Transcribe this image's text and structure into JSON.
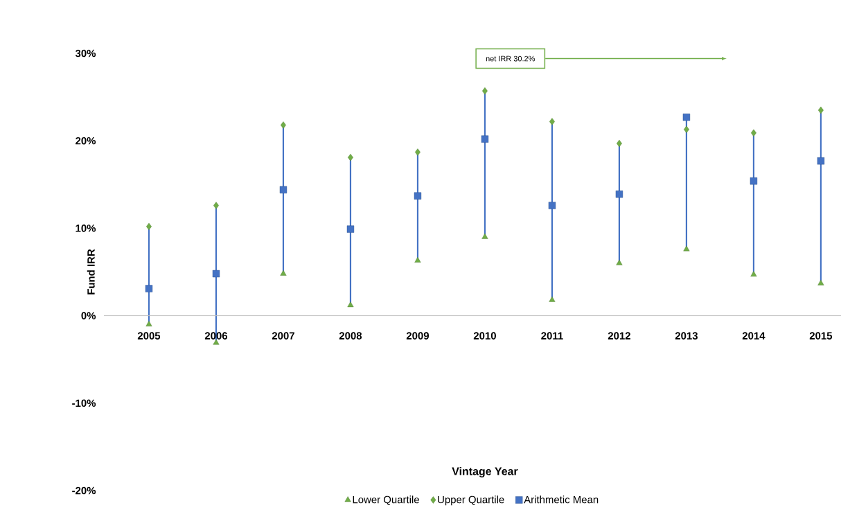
{
  "chart_data": {
    "type": "scatter",
    "ylabel": "Fund IRR",
    "xlabel": "Vintage Year",
    "categories": [
      "2005",
      "2006",
      "2007",
      "2008",
      "2009",
      "2010",
      "2011",
      "2012",
      "2013",
      "2014",
      "2015"
    ],
    "series": [
      {
        "name": "Lower Quartile",
        "color": "#70ad47",
        "marker": "triangle",
        "values": [
          -1.0,
          -3.1,
          4.8,
          1.2,
          6.3,
          9.0,
          1.8,
          6.0,
          7.6,
          4.7,
          3.7
        ]
      },
      {
        "name": "Upper Quartile",
        "color": "#70ad47",
        "marker": "diamond",
        "values": [
          10.2,
          12.6,
          21.8,
          18.1,
          18.7,
          25.7,
          22.2,
          19.7,
          21.3,
          20.9,
          23.5
        ]
      },
      {
        "name": "Arithmetic Mean",
        "color": "#4472c4",
        "marker": "square",
        "values": [
          3.1,
          4.8,
          14.4,
          9.9,
          13.7,
          20.2,
          12.6,
          13.9,
          22.7,
          15.4,
          17.7
        ]
      }
    ],
    "ylim": [
      -20,
      30
    ],
    "yticks": [
      {
        "value": -20,
        "label": "-20%"
      },
      {
        "value": -10,
        "label": "-10%"
      },
      {
        "value": 0,
        "label": "0%"
      },
      {
        "value": 10,
        "label": "10%"
      },
      {
        "value": 20,
        "label": "20%"
      },
      {
        "value": 30,
        "label": "30%"
      }
    ],
    "annotations": [
      "net IRR 30.2%"
    ],
    "grid": false,
    "legend": "bottom"
  }
}
